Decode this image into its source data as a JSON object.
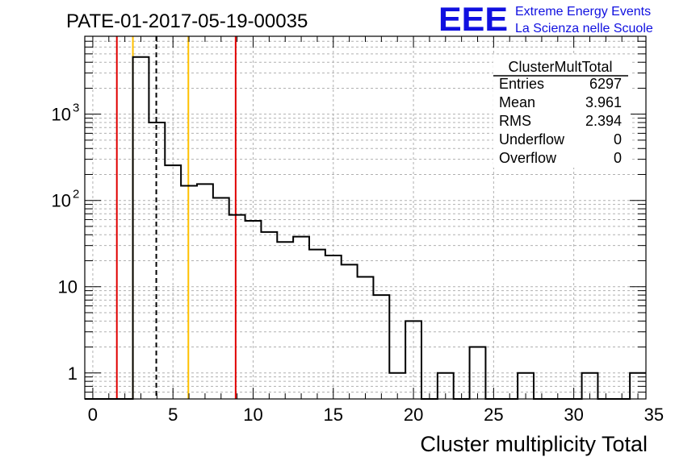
{
  "title": "PATE-01-2017-05-19-00035",
  "logo": {
    "mark": "EEE",
    "line1": "Extreme Energy Events",
    "line2": "La Scienza nelle Scuole",
    "color": "#1010e0"
  },
  "stats": {
    "name": "ClusterMultTotal",
    "rows": [
      {
        "label": "Entries",
        "value": "6297"
      },
      {
        "label": "Mean",
        "value": "3.961"
      },
      {
        "label": "RMS",
        "value": "2.394"
      },
      {
        "label": "Underflow",
        "value": "0"
      },
      {
        "label": "Overflow",
        "value": "0"
      }
    ]
  },
  "chart_data": {
    "type": "bar",
    "style": "step-histogram",
    "xlabel": "Cluster multiplicity Total",
    "ylabel": "",
    "xlim": [
      -0.5,
      34.5
    ],
    "ylim": [
      0.5,
      8000
    ],
    "log_y": true,
    "grid": true,
    "x_ticks": [
      0,
      5,
      10,
      15,
      20,
      25,
      30,
      35
    ],
    "y_ticks": [
      {
        "value": 1,
        "label": "1"
      },
      {
        "value": 10,
        "label": "10"
      },
      {
        "value": 100,
        "label": "10",
        "exp": "2"
      },
      {
        "value": 1000,
        "label": "10",
        "exp": "3"
      }
    ],
    "bin_edges_start": -0.5,
    "bin_width": 1,
    "values": [
      0,
      0,
      0,
      4600,
      800,
      255,
      148,
      155,
      107,
      68,
      58,
      43,
      33,
      38,
      27,
      23,
      18,
      13,
      8,
      1,
      4,
      0,
      1,
      0,
      2,
      0,
      0,
      1,
      0,
      0,
      0,
      1,
      0,
      0,
      1
    ],
    "vertical_lines": [
      {
        "x": 1.5,
        "color": "#e00000",
        "style": "solid"
      },
      {
        "x": 2.5,
        "color": "#ffc000",
        "style": "solid"
      },
      {
        "x": 3.96,
        "color": "#000000",
        "style": "dashed"
      },
      {
        "x": 5.96,
        "color": "#ffc000",
        "style": "solid"
      },
      {
        "x": 8.91,
        "color": "#e00000",
        "style": "solid"
      }
    ]
  }
}
